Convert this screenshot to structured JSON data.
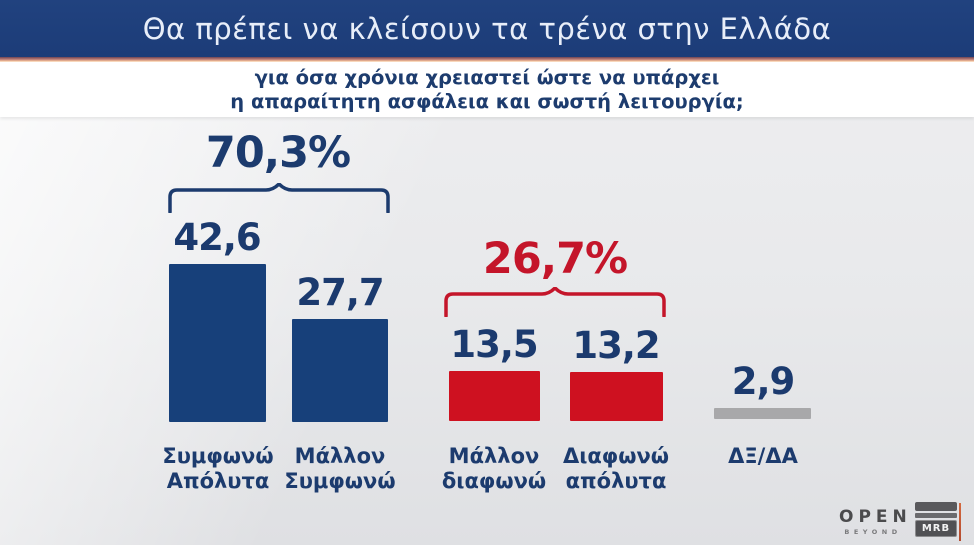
{
  "header": {
    "title": "Θα πρέπει να κλείσουν τα τρένα στην Ελλάδα",
    "subtitle_line1": "για όσα χρόνια χρειαστεί ώστε να υπάρχει",
    "subtitle_line2": "η απαραίτητη ασφάλεια και σωστή λειτουργία;"
  },
  "chart_data": {
    "type": "bar",
    "title": "Θα πρέπει να κλείσουν τα τρένα στην Ελλάδα για όσα χρόνια χρειαστεί ώστε να υπάρχει η απαραίτητη ασφάλεια και σωστή λειτουργία;",
    "categories": [
      "Συμφωνώ\nΑπόλυτα",
      "Μάλλον\nΣυμφωνώ",
      "Μάλλον\nδιαφωνώ",
      "Διαφωνώ\nαπόλυτα",
      "ΔΞ/ΔΑ"
    ],
    "values": [
      42.6,
      27.7,
      13.5,
      13.2,
      2.9
    ],
    "value_labels": [
      "42,6",
      "27,7",
      "13,5",
      "13,2",
      "2,9"
    ],
    "bar_colors": [
      "#17407a",
      "#17407a",
      "#ce1120",
      "#ce1120",
      "#a8a8aa"
    ],
    "groups": [
      {
        "label": "70,3%",
        "total": 70.3,
        "members": [
          "Συμφωνώ Απόλυτα",
          "Μάλλον Συμφωνώ"
        ],
        "color": "#1c3b6e"
      },
      {
        "label": "26,7%",
        "total": 26.7,
        "members": [
          "Μάλλον διαφωνώ",
          "Διαφωνώ απόλυτα"
        ],
        "color": "#c4152a"
      }
    ],
    "grid": false,
    "legend": false,
    "ylim": [
      0,
      45
    ]
  },
  "footer": {
    "open_logo": "OPEN",
    "open_tagline": "BEYOND",
    "mrb_logo": "MRB"
  },
  "colors": {
    "title_bar": "#1c3c78",
    "title_text": "#e8eef9",
    "agree_blue": "#17407a",
    "disagree_red": "#ce1120",
    "neutral_gray": "#a8a8aa",
    "number_navy": "#1b3a6e",
    "percent_red": "#c4152a"
  }
}
